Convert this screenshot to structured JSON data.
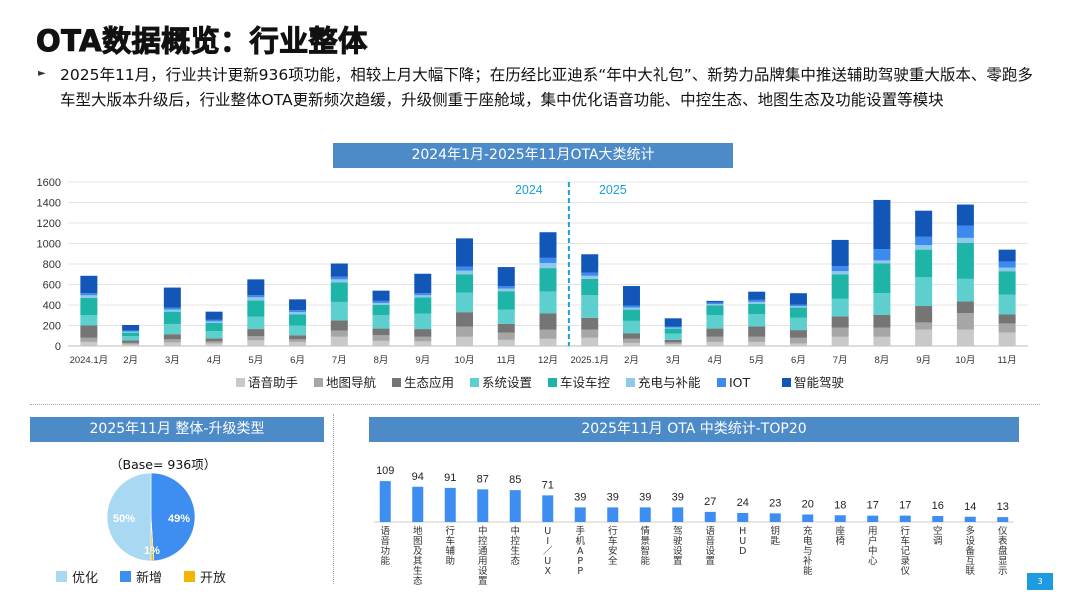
{
  "title": "OTA数据概览：行业整体",
  "summary": "2025年11月，行业共计更新936项功能，相较上月大幅下降；在历经比亚迪系“年中大礼包”、新势力品牌集中推送辅助驾驶重大版本、零跑多车型大版本升级后，行业整体OTA更新频次趋缓，升级侧重于座舱域，集中优化语音功能、中控生态、地图生态及功能设置等模块",
  "page_number": "3",
  "colors": {
    "banner": "#4d8bc8",
    "series": [
      "#c9c9c9",
      "#a6a6a6",
      "#757575",
      "#5ecfcf",
      "#1fb4a8",
      "#8fc8e8",
      "#3c8af0",
      "#1256b8"
    ],
    "pie": [
      "#a8d8f2",
      "#3d8ef0",
      "#f4b400"
    ],
    "top20_bar": "#3d8ef0",
    "divider": "#1ba1d8"
  },
  "chart_data": [
    {
      "type": "bar",
      "stacked": true,
      "title": "2024年1月-2025年11月OTA大类统计",
      "categories": [
        "2024.1月",
        "2月",
        "3月",
        "4月",
        "5月",
        "6月",
        "7月",
        "8月",
        "9月",
        "10月",
        "11月",
        "12月",
        "2025.1月",
        "2月",
        "3月",
        "4月",
        "5月",
        "6月",
        "7月",
        "8月",
        "9月",
        "10月",
        "11月"
      ],
      "ylim": [
        0,
        1600
      ],
      "yticks": [
        0,
        200,
        400,
        600,
        800,
        1000,
        1200,
        1400,
        1600
      ],
      "divider_labels": [
        "2024",
        "2025"
      ],
      "divider_after_index": 11,
      "series": [
        {
          "name": "语音助手",
          "values": [
            40,
            15,
            35,
            25,
            55,
            40,
            90,
            50,
            45,
            90,
            60,
            70,
            80,
            30,
            20,
            40,
            40,
            25,
            90,
            90,
            160,
            160,
            130
          ]
        },
        {
          "name": "地图导航",
          "values": [
            40,
            15,
            30,
            20,
            40,
            25,
            60,
            55,
            45,
            100,
            70,
            90,
            80,
            40,
            15,
            50,
            50,
            55,
            90,
            90,
            70,
            160,
            90
          ]
        },
        {
          "name": "生态应用",
          "values": [
            120,
            25,
            50,
            30,
            70,
            40,
            100,
            65,
            75,
            140,
            85,
            160,
            115,
            55,
            25,
            80,
            100,
            75,
            110,
            125,
            160,
            115,
            90
          ]
        },
        {
          "name": "系统设置",
          "values": [
            100,
            40,
            100,
            70,
            120,
            95,
            180,
            130,
            150,
            190,
            140,
            210,
            220,
            120,
            60,
            130,
            120,
            120,
            170,
            210,
            280,
            220,
            190
          ]
        },
        {
          "name": "车设车控",
          "values": [
            170,
            35,
            120,
            80,
            160,
            110,
            190,
            100,
            160,
            180,
            180,
            230,
            160,
            110,
            50,
            95,
            100,
            100,
            240,
            290,
            270,
            350,
            230
          ]
        },
        {
          "name": "充电与补能",
          "values": [
            25,
            10,
            20,
            15,
            30,
            20,
            30,
            20,
            20,
            35,
            25,
            50,
            30,
            20,
            10,
            15,
            20,
            15,
            30,
            30,
            45,
            50,
            35
          ]
        },
        {
          "name": "IOT",
          "values": [
            20,
            10,
            20,
            15,
            20,
            20,
            25,
            20,
            20,
            40,
            25,
            50,
            30,
            20,
            10,
            15,
            20,
            15,
            50,
            110,
            80,
            120,
            60
          ]
        },
        {
          "name": "智能驾驶",
          "values": [
            170,
            55,
            195,
            80,
            155,
            105,
            130,
            100,
            190,
            275,
            185,
            250,
            180,
            190,
            80,
            15,
            80,
            110,
            255,
            480,
            255,
            205,
            115
          ]
        }
      ]
    },
    {
      "type": "pie",
      "title": "2025年11月 整体-升级类型",
      "base_label": "（Base= 936项）",
      "labels": [
        "优化",
        "新增",
        "开放"
      ],
      "values": [
        50,
        49,
        1
      ],
      "value_labels": [
        "50%",
        "49%",
        "1%"
      ]
    },
    {
      "type": "bar",
      "title": "2025年11月 OTA 中类统计-TOP20",
      "categories": [
        "语音功能",
        "地图及其生态",
        "行车辅助",
        "中控通用设置",
        "中控生态",
        "UI／UX",
        "手机APP",
        "行车安全",
        "情景智能",
        "驾驶设置",
        "语音设置",
        "HUD",
        "钥匙",
        "充电与补能",
        "座椅",
        "用户中心",
        "行车记录仪",
        "空调",
        "多设备互联",
        "仪表盘显示"
      ],
      "values": [
        109,
        94,
        91,
        87,
        85,
        71,
        39,
        39,
        39,
        39,
        27,
        24,
        23,
        20,
        18,
        17,
        17,
        16,
        14,
        13
      ],
      "ylim": [
        0,
        120
      ]
    }
  ]
}
